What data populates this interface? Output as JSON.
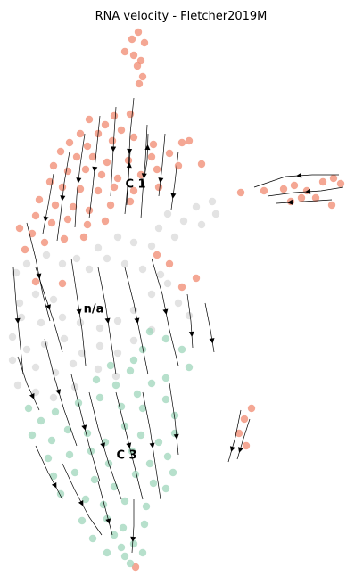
{
  "chart_data": {
    "type": "scatter",
    "title": "RNA velocity - Fletcher2019M",
    "xlabel": "",
    "ylabel": "",
    "axes_visible": false,
    "grid": false,
    "legend": "none",
    "cluster_labels": [
      {
        "name": "C 1",
        "x": 152,
        "y": 207
      },
      {
        "name": "n/a",
        "x": 105,
        "y": 347
      },
      {
        "name": "C 3",
        "x": 142,
        "y": 511
      }
    ],
    "colors": {
      "C 1": "#f08a70",
      "n/a": "#d9d9d9",
      "C 3": "#9fd5bb",
      "stream": "#000000"
    },
    "series": [
      {
        "name": "C 1",
        "points": [
          [
            155,
            36
          ],
          [
            148,
            44
          ],
          [
            162,
            48
          ],
          [
            140,
            58
          ],
          [
            150,
            62
          ],
          [
            158,
            68
          ],
          [
            154,
            74
          ],
          [
            160,
            86
          ],
          [
            156,
            94
          ],
          [
            100,
            134
          ],
          [
            128,
            130
          ],
          [
            146,
            128
          ],
          [
            118,
            140
          ],
          [
            90,
            150
          ],
          [
            136,
            146
          ],
          [
            110,
            150
          ],
          [
            78,
            160
          ],
          [
            126,
            158
          ],
          [
            150,
            154
          ],
          [
            98,
            164
          ],
          [
            172,
            162
          ],
          [
            204,
            160
          ],
          [
            212,
            158
          ],
          [
            68,
            170
          ],
          [
            86,
            176
          ],
          [
            104,
            176
          ],
          [
            120,
            182
          ],
          [
            144,
            180
          ],
          [
            170,
            176
          ],
          [
            190,
            172
          ],
          [
            60,
            186
          ],
          [
            76,
            192
          ],
          [
            96,
            190
          ],
          [
            114,
            196
          ],
          [
            132,
            200
          ],
          [
            158,
            196
          ],
          [
            176,
            190
          ],
          [
            200,
            186
          ],
          [
            226,
            184
          ],
          [
            56,
            204
          ],
          [
            70,
            210
          ],
          [
            90,
            212
          ],
          [
            110,
            214
          ],
          [
            128,
            210
          ],
          [
            150,
            214
          ],
          [
            178,
            210
          ],
          [
            44,
            224
          ],
          [
            62,
            230
          ],
          [
            82,
            232
          ],
          [
            100,
            236
          ],
          [
            124,
            230
          ],
          [
            146,
            226
          ],
          [
            40,
            242
          ],
          [
            58,
            250
          ],
          [
            76,
            246
          ],
          [
            98,
            252
          ],
          [
            118,
            248
          ],
          [
            22,
            256
          ],
          [
            36,
            262
          ],
          [
            50,
            272
          ],
          [
            72,
            268
          ],
          [
            94,
            266
          ],
          [
            28,
            280
          ],
          [
            176,
            286
          ],
          [
            190,
            296
          ],
          [
            220,
            312
          ],
          [
            40,
            316
          ],
          [
            204,
            322
          ],
          [
            70,
            318
          ],
          [
            270,
            216
          ],
          [
            296,
            214
          ],
          [
            318,
            212
          ],
          [
            330,
            208
          ],
          [
            344,
            214
          ],
          [
            362,
            204
          ],
          [
            374,
            200
          ],
          [
            382,
            206
          ],
          [
            354,
            222
          ],
          [
            372,
            230
          ],
          [
            326,
            226
          ],
          [
            338,
            222
          ],
          [
            282,
            458
          ],
          [
            274,
            470
          ],
          [
            268,
            486
          ],
          [
            276,
            500
          ],
          [
            152,
            636
          ]
        ]
      },
      {
        "name": "n/a",
        "points": [
          [
            220,
            232
          ],
          [
            238,
            226
          ],
          [
            188,
            240
          ],
          [
            206,
            248
          ],
          [
            226,
            252
          ],
          [
            178,
            256
          ],
          [
            196,
            266
          ],
          [
            242,
            240
          ],
          [
            132,
            266
          ],
          [
            150,
            272
          ],
          [
            170,
            276
          ],
          [
            110,
            278
          ],
          [
            120,
            290
          ],
          [
            140,
            296
          ],
          [
            160,
            302
          ],
          [
            180,
            308
          ],
          [
            100,
            302
          ],
          [
            86,
            290
          ],
          [
            70,
            296
          ],
          [
            52,
            286
          ],
          [
            30,
            296
          ],
          [
            18,
            306
          ],
          [
            40,
            330
          ],
          [
            60,
            336
          ],
          [
            22,
            340
          ],
          [
            24,
            356
          ],
          [
            46,
            362
          ],
          [
            70,
            356
          ],
          [
            90,
            362
          ],
          [
            112,
            368
          ],
          [
            132,
            360
          ],
          [
            150,
            348
          ],
          [
            170,
            330
          ],
          [
            188,
            318
          ],
          [
            200,
            340
          ],
          [
            212,
            354
          ],
          [
            14,
            378
          ],
          [
            30,
            392
          ],
          [
            50,
            386
          ],
          [
            72,
            380
          ],
          [
            92,
            396
          ],
          [
            112,
            388
          ],
          [
            132,
            396
          ],
          [
            150,
            382
          ],
          [
            170,
            370
          ],
          [
            14,
            404
          ],
          [
            40,
            412
          ],
          [
            62,
            418
          ],
          [
            82,
            408
          ],
          [
            110,
            414
          ],
          [
            130,
            422
          ],
          [
            20,
            432
          ],
          [
            40,
            440
          ],
          [
            60,
            446
          ],
          [
            84,
            434
          ]
        ]
      },
      {
        "name": "C 3",
        "points": [
          [
            168,
            372
          ],
          [
            186,
            380
          ],
          [
            160,
            392
          ],
          [
            204,
            392
          ],
          [
            212,
            412
          ],
          [
            150,
            404
          ],
          [
            186,
            424
          ],
          [
            146,
            416
          ],
          [
            124,
            410
          ],
          [
            108,
            426
          ],
          [
            130,
            432
          ],
          [
            170,
            430
          ],
          [
            154,
            442
          ],
          [
            32,
            458
          ],
          [
            46,
            472
          ],
          [
            62,
            462
          ],
          [
            88,
            452
          ],
          [
            112,
            446
          ],
          [
            136,
            456
          ],
          [
            160,
            458
          ],
          [
            186,
            448
          ],
          [
            196,
            466
          ],
          [
            36,
            488
          ],
          [
            58,
            494
          ],
          [
            76,
            482
          ],
          [
            98,
            486
          ],
          [
            118,
            496
          ],
          [
            140,
            478
          ],
          [
            158,
            488
          ],
          [
            178,
            496
          ],
          [
            196,
            486
          ],
          [
            54,
            514
          ],
          [
            78,
            510
          ],
          [
            102,
            506
          ],
          [
            122,
            520
          ],
          [
            148,
            506
          ],
          [
            168,
            520
          ],
          [
            188,
            512
          ],
          [
            60,
            534
          ],
          [
            84,
            530
          ],
          [
            106,
            538
          ],
          [
            128,
            546
          ],
          [
            152,
            532
          ],
          [
            172,
            542
          ],
          [
            194,
            530
          ],
          [
            68,
            554
          ],
          [
            96,
            560
          ],
          [
            116,
            566
          ],
          [
            140,
            562
          ],
          [
            164,
            568
          ],
          [
            186,
            548
          ],
          [
            92,
            584
          ],
          [
            120,
            582
          ],
          [
            138,
            592
          ],
          [
            162,
            588
          ],
          [
            104,
            604
          ],
          [
            128,
            600
          ],
          [
            150,
            610
          ],
          [
            120,
            620
          ],
          [
            140,
            624
          ],
          [
            160,
            620
          ],
          [
            146,
            632
          ],
          [
            136,
            614
          ]
        ]
      }
    ]
  }
}
